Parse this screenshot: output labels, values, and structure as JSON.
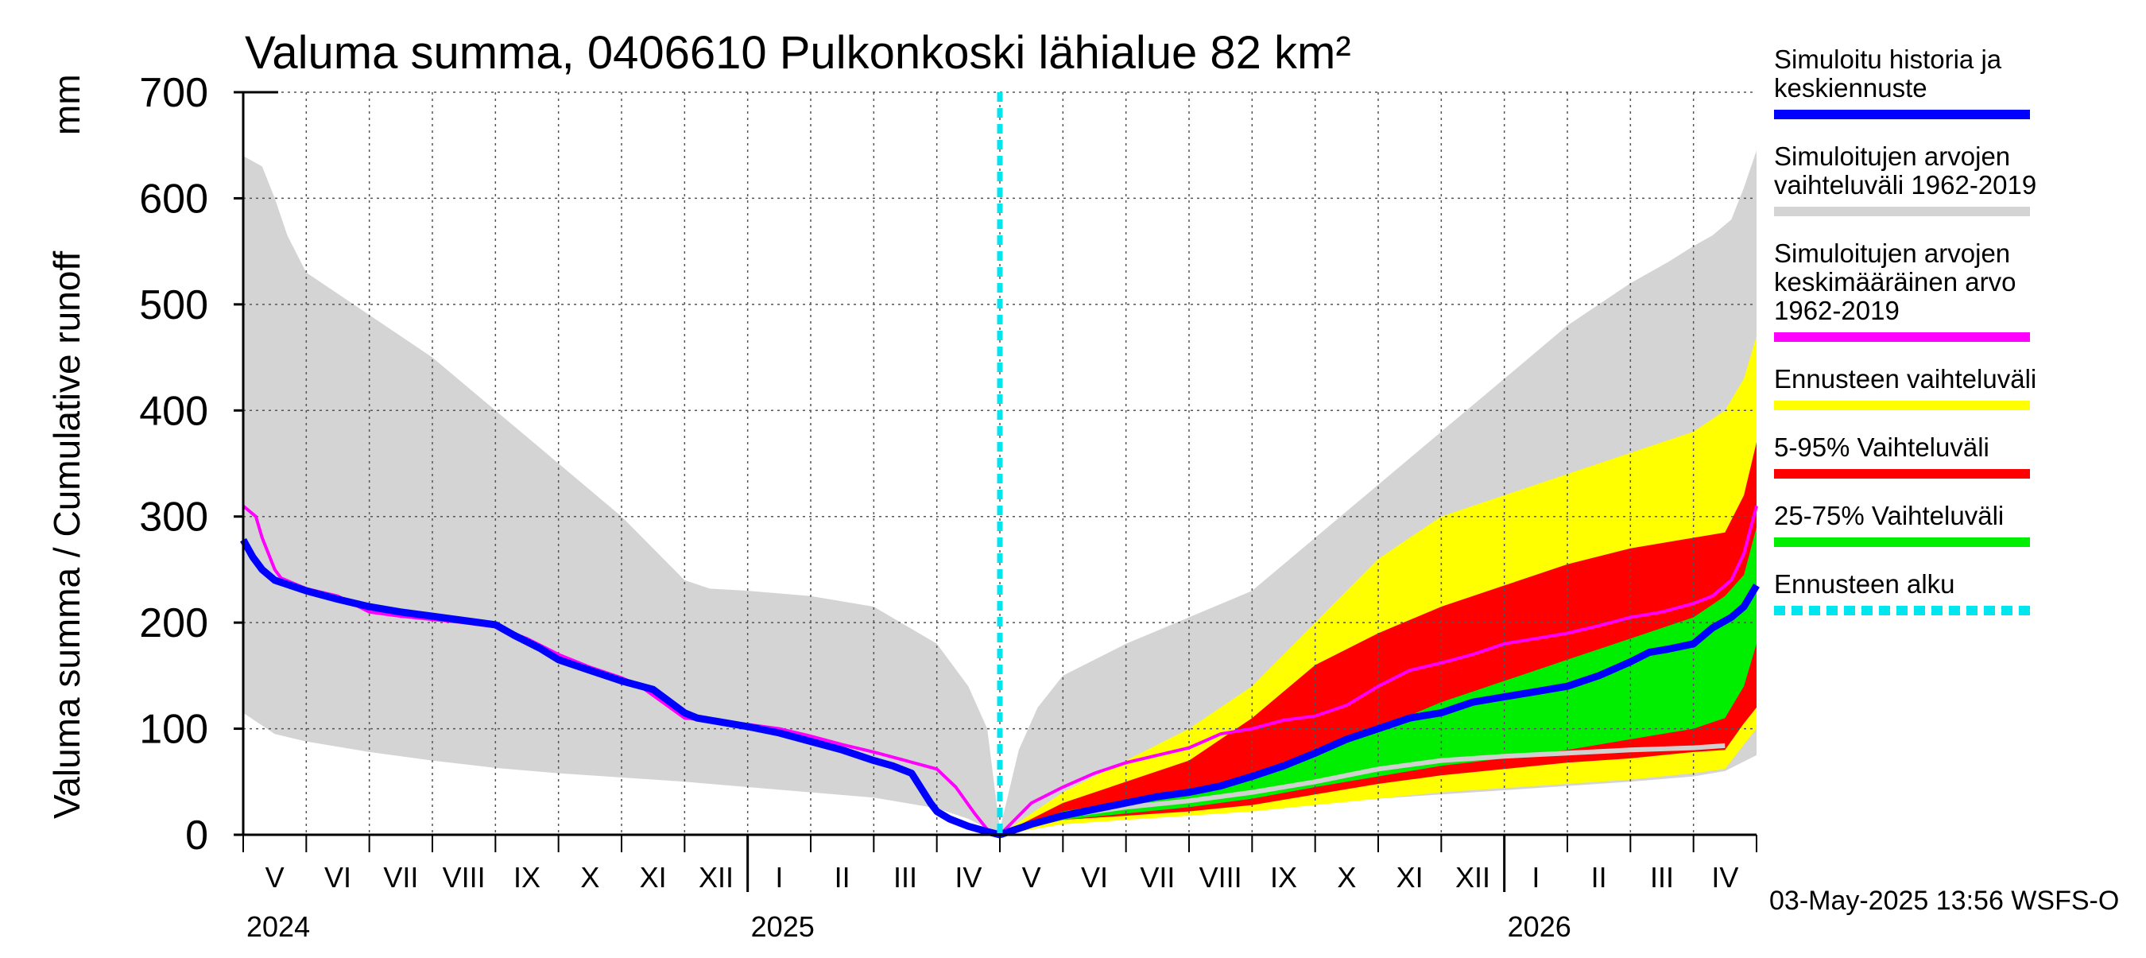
{
  "chart_data": {
    "type": "area",
    "title": "Valuma summa, 0406610 Pulkonkoski lähialue 82 km²",
    "ylabel_fi": "Valuma summa / Cumulative runoff",
    "ylabel_unit": "mm",
    "ylim": [
      0,
      700
    ],
    "yticks": [
      0,
      100,
      200,
      300,
      400,
      500,
      600,
      700
    ],
    "ytick_labels": [
      "0",
      "100",
      "200",
      "300",
      "400",
      "500",
      "600",
      "700"
    ],
    "xlim_months": [
      0,
      24
    ],
    "month_labels": [
      "V",
      "VI",
      "VII",
      "VIII",
      "IX",
      "X",
      "XI",
      "XII",
      "I",
      "II",
      "III",
      "IV",
      "V",
      "VI",
      "VII",
      "VIII",
      "IX",
      "X",
      "XI",
      "XII",
      "I",
      "II",
      "III",
      "IV"
    ],
    "years": [
      {
        "label": "2024",
        "month_index": 0
      },
      {
        "label": "2025",
        "month_index": 8
      },
      {
        "label": "2026",
        "month_index": 20
      }
    ],
    "forecast_start_month": 12,
    "colors": {
      "hist_band": "#d4d4d4",
      "forecast_range": "#ffff00",
      "p5_95": "#ff0000",
      "p25_75": "#00ee00",
      "history": "#0000ff",
      "mean": "#ff00ff",
      "forecast_start": "#00e5ee",
      "median_light": "#d0d0d0"
    },
    "series": {
      "hist_band_upper": {
        "x": [
          0,
          0.3,
          0.5,
          0.7,
          1,
          1.5,
          2,
          3,
          4,
          5,
          6,
          7,
          7.4,
          8,
          9,
          10,
          11,
          11.5,
          11.8,
          12,
          12.3,
          12.6,
          13,
          14,
          15,
          16,
          17,
          18,
          19,
          20,
          21,
          22,
          22.6,
          23,
          23.3,
          23.6,
          23.8,
          24
        ],
        "y": [
          640,
          630,
          600,
          565,
          530,
          510,
          490,
          450,
          400,
          350,
          300,
          240,
          232,
          230,
          225,
          215,
          180,
          140,
          100,
          5,
          80,
          120,
          150,
          180,
          205,
          230,
          280,
          330,
          380,
          430,
          480,
          520,
          540,
          555,
          565,
          580,
          610,
          645
        ]
      },
      "hist_band_lower": {
        "x": [
          0,
          0.5,
          1,
          2,
          3,
          4,
          5,
          6,
          7,
          8,
          9,
          10,
          11,
          11.5,
          12,
          12.5,
          13,
          14,
          15,
          16,
          17,
          18,
          19,
          20,
          21,
          22,
          23,
          23.5,
          24
        ],
        "y": [
          115,
          95,
          88,
          78,
          70,
          63,
          58,
          54,
          50,
          45,
          40,
          35,
          25,
          15,
          0,
          10,
          14,
          18,
          22,
          26,
          30,
          34,
          38,
          42,
          46,
          50,
          55,
          60,
          75
        ]
      },
      "forecast_range_upper": {
        "x": [
          12,
          13,
          14,
          15,
          16,
          17,
          18,
          19,
          20,
          21,
          22,
          23,
          23.5,
          23.8,
          24
        ],
        "y": [
          0,
          40,
          70,
          100,
          140,
          200,
          260,
          300,
          320,
          340,
          360,
          380,
          400,
          430,
          470
        ]
      },
      "forecast_range_lower": {
        "x": [
          12,
          13,
          14,
          15,
          16,
          17,
          18,
          19,
          20,
          21,
          22,
          23,
          23.5,
          23.8,
          24
        ],
        "y": [
          0,
          10,
          14,
          18,
          22,
          28,
          34,
          40,
          44,
          48,
          52,
          58,
          62,
          85,
          100
        ]
      },
      "p5_95_upper": {
        "x": [
          12,
          13,
          14,
          15,
          16,
          17,
          18,
          19,
          20,
          21,
          22,
          23,
          23.5,
          23.8,
          24
        ],
        "y": [
          0,
          30,
          50,
          70,
          110,
          160,
          190,
          215,
          235,
          255,
          270,
          280,
          285,
          320,
          370
        ]
      },
      "p5_95_lower": {
        "x": [
          12,
          13,
          14,
          15,
          16,
          17,
          18,
          19,
          20,
          21,
          22,
          23,
          23.5,
          23.8,
          24
        ],
        "y": [
          0,
          14,
          18,
          22,
          28,
          38,
          48,
          56,
          62,
          68,
          72,
          78,
          80,
          105,
          120
        ]
      },
      "p25_75_upper": {
        "x": [
          12,
          13,
          14,
          15,
          16,
          17,
          18,
          19,
          20,
          21,
          22,
          23,
          23.5,
          23.8,
          24
        ],
        "y": [
          0,
          22,
          32,
          42,
          55,
          75,
          100,
          125,
          145,
          165,
          185,
          205,
          225,
          245,
          290
        ]
      },
      "p25_75_lower": {
        "x": [
          12,
          13,
          14,
          15,
          16,
          17,
          18,
          19,
          20,
          21,
          22,
          23,
          23.5,
          23.8,
          24
        ],
        "y": [
          0,
          14,
          20,
          26,
          34,
          45,
          55,
          65,
          72,
          80,
          90,
          100,
          110,
          140,
          180
        ]
      },
      "median_light": {
        "x": [
          12,
          13,
          14,
          15,
          16,
          17,
          18,
          19,
          20,
          21,
          22,
          23,
          23.5
        ],
        "y": [
          0,
          18,
          26,
          32,
          40,
          50,
          62,
          70,
          74,
          77,
          80,
          82,
          84
        ]
      },
      "history": {
        "x": [
          0,
          0.15,
          0.3,
          0.5,
          1,
          1.5,
          2,
          2.5,
          3,
          3.5,
          4,
          4.3,
          4.7,
          5,
          5.5,
          6,
          6.5,
          7,
          7.2,
          7.5,
          8,
          8.5,
          9,
          9.5,
          10,
          10.3,
          10.6,
          10.9,
          11,
          11.2,
          11.5,
          11.8,
          12
        ],
        "y": [
          278,
          262,
          250,
          240,
          230,
          222,
          215,
          210,
          206,
          202,
          198,
          188,
          176,
          165,
          155,
          145,
          137,
          115,
          110,
          107,
          102,
          96,
          88,
          80,
          70,
          65,
          58,
          30,
          22,
          15,
          8,
          3,
          0
        ]
      },
      "forecast_median": {
        "x": [
          12,
          12.5,
          13,
          13.5,
          14,
          14.5,
          15,
          15.5,
          16,
          16.5,
          17,
          17.5,
          18,
          18.5,
          19,
          19.5,
          20,
          20.5,
          21,
          21.5,
          22,
          22.3,
          22.6,
          23,
          23.3,
          23.6,
          23.8,
          24
        ],
        "y": [
          0,
          10,
          18,
          24,
          30,
          36,
          40,
          46,
          55,
          65,
          77,
          90,
          100,
          110,
          115,
          125,
          130,
          135,
          140,
          150,
          163,
          172,
          175,
          180,
          195,
          205,
          215,
          235
        ]
      },
      "mean": {
        "x": [
          0,
          0.1,
          0.2,
          0.3,
          0.5,
          0.6,
          1,
          1.5,
          2,
          2.5,
          3,
          3.5,
          4,
          4.5,
          5,
          5.5,
          6,
          6.3,
          7,
          7.5,
          8,
          8.5,
          9,
          9.5,
          10,
          10.5,
          11,
          11.3,
          11.6,
          11.8,
          12,
          12.5,
          13,
          13.5,
          14,
          14.5,
          15,
          15.5,
          16,
          16.5,
          17,
          17.5,
          18,
          18.5,
          19,
          19.5,
          20,
          20.5,
          21,
          21.5,
          22,
          22.5,
          23,
          23.3,
          23.6,
          23.8,
          24
        ],
        "y": [
          310,
          305,
          300,
          280,
          250,
          242,
          232,
          225,
          210,
          206,
          203,
          200,
          196,
          185,
          170,
          158,
          148,
          140,
          110,
          107,
          104,
          100,
          93,
          85,
          78,
          70,
          62,
          45,
          20,
          5,
          0,
          30,
          45,
          58,
          68,
          75,
          82,
          95,
          100,
          108,
          112,
          122,
          140,
          155,
          162,
          170,
          180,
          185,
          190,
          197,
          205,
          210,
          218,
          225,
          240,
          265,
          310
        ]
      }
    },
    "legend": [
      {
        "label_lines": [
          "Simuloitu historia ja",
          "keskiennuste"
        ],
        "color": "#0000ff",
        "style": "solid"
      },
      {
        "label_lines": [
          "Simuloitujen arvojen",
          "vaihteluväli 1962-2019"
        ],
        "color": "#d4d4d4",
        "style": "solid"
      },
      {
        "label_lines": [
          "Simuloitujen arvojen",
          "keskimääräinen arvo",
          "   1962-2019"
        ],
        "color": "#ff00ff",
        "style": "solid"
      },
      {
        "label_lines": [
          "Ennusteen vaihteluväli"
        ],
        "color": "#ffff00",
        "style": "solid"
      },
      {
        "label_lines": [
          "5-95% Vaihteluväli"
        ],
        "color": "#ff0000",
        "style": "solid"
      },
      {
        "label_lines": [
          "25-75% Vaihteluväli"
        ],
        "color": "#00ee00",
        "style": "solid"
      },
      {
        "label_lines": [
          "Ennusteen alku"
        ],
        "color": "#00e5ee",
        "style": "dashed"
      }
    ],
    "footer": "03-May-2025 13:56 WSFS-O"
  }
}
